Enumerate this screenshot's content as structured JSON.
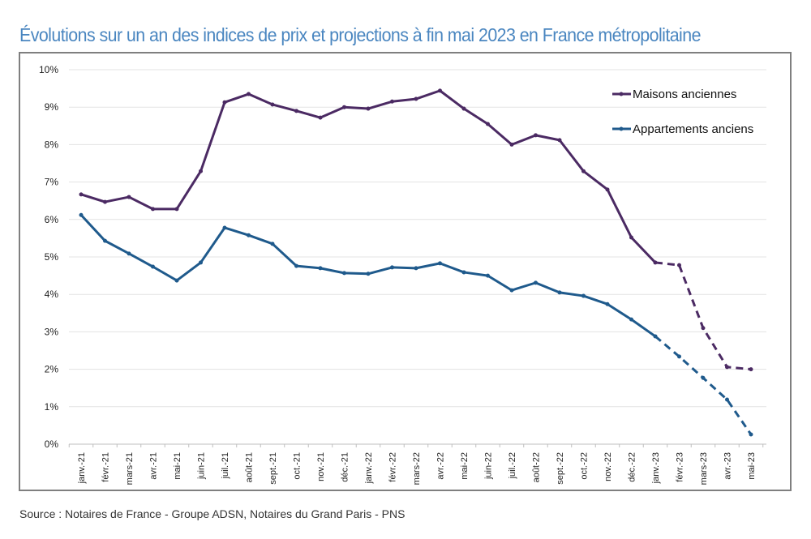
{
  "chart_data": {
    "type": "line",
    "title": "Évolutions sur un an des indices de prix et projections à fin mai 2023 en France métropolitaine",
    "categories": [
      "janv.-21",
      "févr.-21",
      "mars-21",
      "avr.-21",
      "mai-21",
      "juin-21",
      "juil.-21",
      "août-21",
      "sept.-21",
      "oct.-21",
      "nov.-21",
      "déc.-21",
      "janv.-22",
      "févr.-22",
      "mars-22",
      "avr.-22",
      "mai-22",
      "juin-22",
      "juil.-22",
      "août-22",
      "sept.-22",
      "oct.-22",
      "nov.-22",
      "déc.-22",
      "janv.-23",
      "févr.-23",
      "mars-23",
      "avr.-23",
      "mai-23"
    ],
    "yticks": [
      "0%",
      "1%",
      "2%",
      "3%",
      "4%",
      "5%",
      "6%",
      "7%",
      "8%",
      "9%",
      "10%"
    ],
    "ylim": [
      0,
      10
    ],
    "projection_start": "janv.-23",
    "legend_position": "top-right",
    "grid": true,
    "series": [
      {
        "name": "Maisons anciennes",
        "color": "#4b2a63",
        "values": [
          6.67,
          6.47,
          6.6,
          6.28,
          6.28,
          7.29,
          9.13,
          9.35,
          9.07,
          8.9,
          8.72,
          9.0,
          8.96,
          9.15,
          9.22,
          9.44,
          8.96,
          8.55,
          8.0,
          8.25,
          8.12,
          7.29,
          6.8,
          5.52,
          4.85,
          4.78,
          3.1,
          2.06,
          2.0
        ]
      },
      {
        "name": "Appartements anciens",
        "color": "#1f5a8c",
        "values": [
          6.12,
          5.43,
          5.09,
          4.74,
          4.37,
          4.85,
          5.78,
          5.58,
          5.35,
          4.76,
          4.7,
          4.57,
          4.55,
          4.72,
          4.7,
          4.83,
          4.59,
          4.5,
          4.11,
          4.31,
          4.05,
          3.96,
          3.74,
          3.33,
          2.88,
          2.34,
          1.77,
          1.19,
          0.26
        ]
      }
    ]
  },
  "source": "Source : Notaires de France - Groupe ADSN, Notaires du Grand Paris - PNS"
}
